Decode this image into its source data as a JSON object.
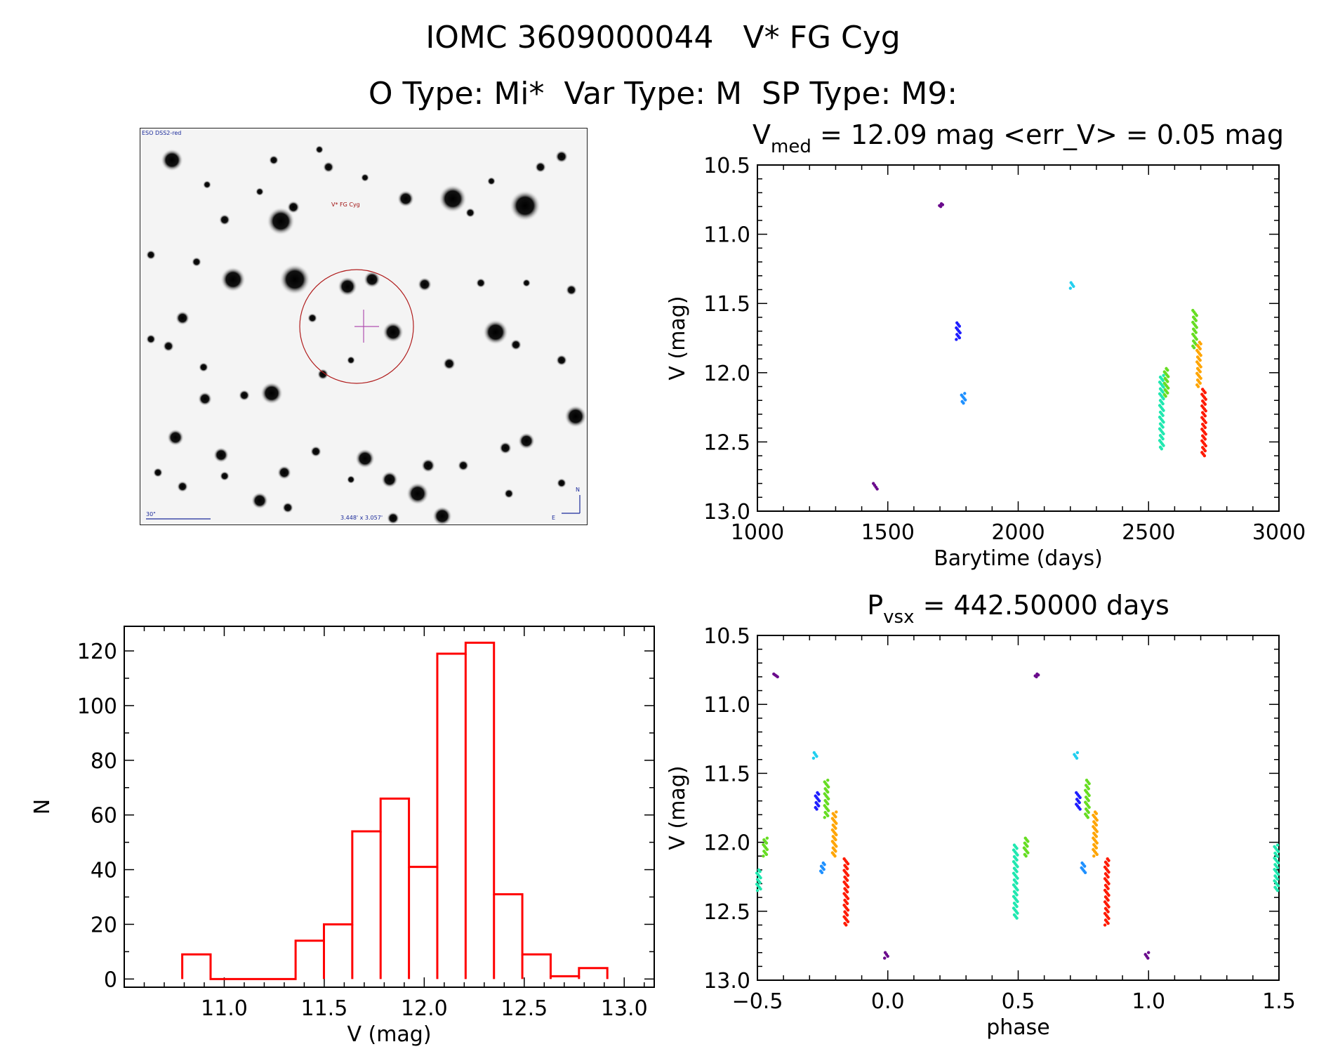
{
  "header": {
    "title_line1": "IOMC 3609000044   V* FG Cyg",
    "title_line2": "O Type: Mi*  Var Type: M  SP Type: M9:"
  },
  "finder": {
    "survey_label": "ESO DSS2-red",
    "target_label": "V* FG Cyg",
    "scale_label": "30\"",
    "fov_label": "3.448' x 3.057'",
    "north_label": "N",
    "east_label": "E"
  },
  "colors": {
    "histogram": "#ff0000",
    "phase_colors": [
      "#6a0a8c",
      "#1e1eff",
      "#1e90ff",
      "#22cfef",
      "#20e8b0",
      "#66dd22",
      "#ffa500",
      "#ff1a00"
    ]
  },
  "chart_data": [
    {
      "id": "lightcurve",
      "type": "scatter",
      "title": "V_med = 12.09 mag <err_V> = 0.05 mag",
      "title_main": "V",
      "title_sub": "med",
      "title_rest": " = 12.09 mag <err_V> = 0.05 mag",
      "xlabel": "Barytime (days)",
      "ylabel": "V (mag)",
      "xlim": [
        1000,
        3000
      ],
      "ylim": [
        10.5,
        13.0
      ],
      "y_inverted": true,
      "xticks": [
        1000,
        1500,
        2000,
        2500,
        3000
      ],
      "xtick_labels": [
        "1000",
        "1500",
        "2000",
        "2500",
        "3000"
      ],
      "yticks": [
        10.5,
        11.0,
        11.5,
        12.0,
        12.5,
        13.0
      ],
      "ytick_labels": [
        "10.5",
        "11.0",
        "11.5",
        "12.0",
        "12.5",
        "13.0"
      ],
      "clusters": [
        {
          "x": 1452,
          "y": [
            12.8,
            12.84
          ],
          "color": 0
        },
        {
          "x": 1703,
          "y": [
            10.78,
            10.8
          ],
          "color": 0
        },
        {
          "x": 1770,
          "y": [
            11.64,
            11.76
          ],
          "color": 1
        },
        {
          "x": 1790,
          "y": [
            12.15,
            12.22
          ],
          "color": 2
        },
        {
          "x": 2205,
          "y": [
            11.35,
            11.39
          ],
          "color": 3
        },
        {
          "x": 2550,
          "y": [
            12.02,
            12.55
          ],
          "color": 4
        },
        {
          "x": 2568,
          "y": [
            11.97,
            12.17
          ],
          "color": 5
        },
        {
          "x": 2677,
          "y": [
            11.55,
            11.82
          ],
          "color": 5
        },
        {
          "x": 2693,
          "y": [
            11.78,
            12.1
          ],
          "color": 6
        },
        {
          "x": 2712,
          "y": [
            12.12,
            12.6
          ],
          "color": 7
        }
      ]
    },
    {
      "id": "histogram",
      "type": "bar",
      "xlabel": "V (mag)",
      "ylabel": "N",
      "xlim": [
        10.5,
        13.15
      ],
      "ylim": [
        -3,
        129
      ],
      "xticks": [
        11.0,
        11.5,
        12.0,
        12.5,
        13.0
      ],
      "xtick_labels": [
        "11.0",
        "11.5",
        "12.0",
        "12.5",
        "13.0"
      ],
      "yticks": [
        0,
        20,
        40,
        60,
        80,
        100,
        120
      ],
      "ytick_labels": [
        "0",
        "20",
        "40",
        "60",
        "80",
        "100",
        "120"
      ],
      "bin_start": 10.79,
      "bin_width": 0.1417,
      "values": [
        9,
        0,
        0,
        0,
        14,
        20,
        54,
        66,
        41,
        119,
        123,
        31,
        9,
        1,
        4
      ]
    },
    {
      "id": "phased",
      "type": "scatter",
      "title": "P_vsx = 442.50000 days",
      "title_main": "P",
      "title_sub": "vsx",
      "title_rest": " = 442.50000 days",
      "xlabel": "phase",
      "ylabel": "V (mag)",
      "xlim": [
        -0.5,
        1.5
      ],
      "ylim": [
        10.5,
        13.0
      ],
      "y_inverted": true,
      "xticks": [
        -0.5,
        0.0,
        0.5,
        1.0,
        1.5
      ],
      "xtick_labels": [
        "−0.5",
        "0.0",
        "0.5",
        "1.0",
        "1.5"
      ],
      "yticks": [
        10.5,
        11.0,
        11.5,
        12.0,
        12.5,
        13.0
      ],
      "ytick_labels": [
        "10.5",
        "11.0",
        "11.5",
        "12.0",
        "12.5",
        "13.0"
      ],
      "clusters": [
        {
          "x": -0.43,
          "y": [
            10.78,
            10.8
          ],
          "color": 0
        },
        {
          "x": 0.57,
          "y": [
            10.78,
            10.8
          ],
          "color": 0
        },
        {
          "x": -0.005,
          "y": [
            12.8,
            12.84
          ],
          "color": 0
        },
        {
          "x": 0.995,
          "y": [
            12.8,
            12.84
          ],
          "color": 0
        },
        {
          "x": -0.28,
          "y": [
            11.35,
            11.39
          ],
          "color": 3
        },
        {
          "x": 0.72,
          "y": [
            11.35,
            11.39
          ],
          "color": 3
        },
        {
          "x": -0.27,
          "y": [
            11.64,
            11.76
          ],
          "color": 1
        },
        {
          "x": 0.73,
          "y": [
            11.64,
            11.76
          ],
          "color": 1
        },
        {
          "x": -0.25,
          "y": [
            12.15,
            12.22
          ],
          "color": 2
        },
        {
          "x": 0.75,
          "y": [
            12.15,
            12.22
          ],
          "color": 2
        },
        {
          "x": -0.235,
          "y": [
            11.55,
            11.82
          ],
          "color": 5
        },
        {
          "x": 0.765,
          "y": [
            11.55,
            11.82
          ],
          "color": 5
        },
        {
          "x": -0.205,
          "y": [
            11.78,
            12.1
          ],
          "color": 6
        },
        {
          "x": 0.795,
          "y": [
            11.78,
            12.1
          ],
          "color": 6
        },
        {
          "x": -0.16,
          "y": [
            12.12,
            12.6
          ],
          "color": 7
        },
        {
          "x": 0.84,
          "y": [
            12.12,
            12.6
          ],
          "color": 7
        },
        {
          "x": 0.49,
          "y": [
            12.02,
            12.55
          ],
          "color": 4
        },
        {
          "x": 1.49,
          "y": [
            12.02,
            12.35
          ],
          "color": 4
        },
        {
          "x": 0.53,
          "y": [
            11.97,
            12.1
          ],
          "color": 5
        },
        {
          "x": -0.47,
          "y": [
            11.97,
            12.1
          ],
          "color": 5
        },
        {
          "x": -0.495,
          "y": [
            12.2,
            12.35
          ],
          "color": 4
        }
      ]
    }
  ]
}
